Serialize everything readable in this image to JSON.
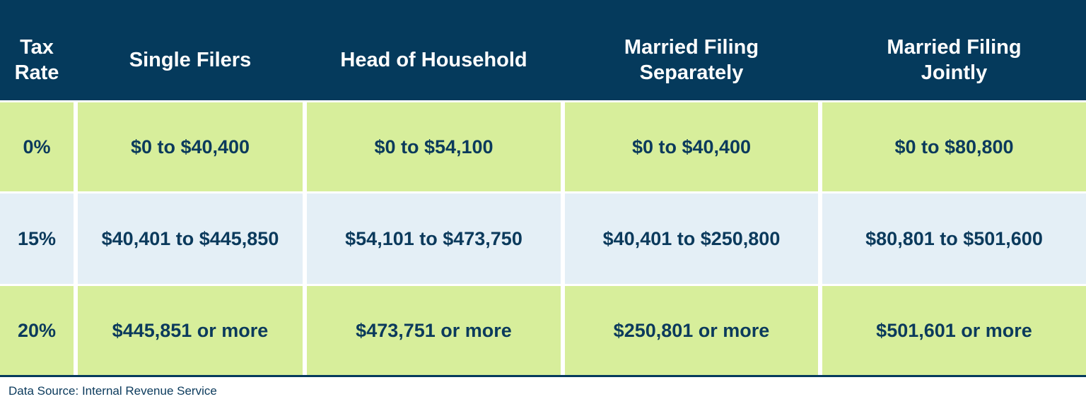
{
  "table": {
    "header": [
      [
        "Tax",
        "Rate"
      ],
      [
        "Single Filers"
      ],
      [
        "Head of Household"
      ],
      [
        "Married Filing",
        "Separately"
      ],
      [
        "Married Filing",
        "Jointly"
      ]
    ],
    "rows": [
      [
        "0%",
        "$0 to $40,400",
        "$0 to $54,100",
        "$0 to $40,400",
        "$0 to $80,800"
      ],
      [
        "15%",
        "$40,401 to $445,850",
        "$54,101 to $473,750",
        "$40,401 to $250,800",
        "$80,801 to $501,600"
      ],
      [
        "20%",
        "$445,851 or more",
        "$473,751 or more",
        "$250,801 or more",
        "$501,601 or more"
      ]
    ]
  },
  "footer": {
    "source": "Data Source: Internal Revenue Service"
  }
}
